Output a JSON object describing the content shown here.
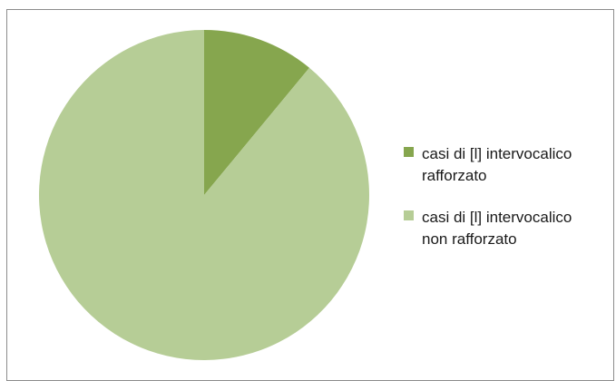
{
  "chart_data": {
    "type": "pie",
    "title": "",
    "slices": [
      {
        "label": "casi di [l] intervocalico\nrafforzato",
        "value": 11,
        "color": "#86a64e"
      },
      {
        "label": "casi di [l] intervocalico\nnon rafforzato",
        "value": 89,
        "color": "#b6cd96"
      }
    ],
    "start_angle_deg": 0,
    "direction": "clockwise",
    "legend_position": "right"
  }
}
